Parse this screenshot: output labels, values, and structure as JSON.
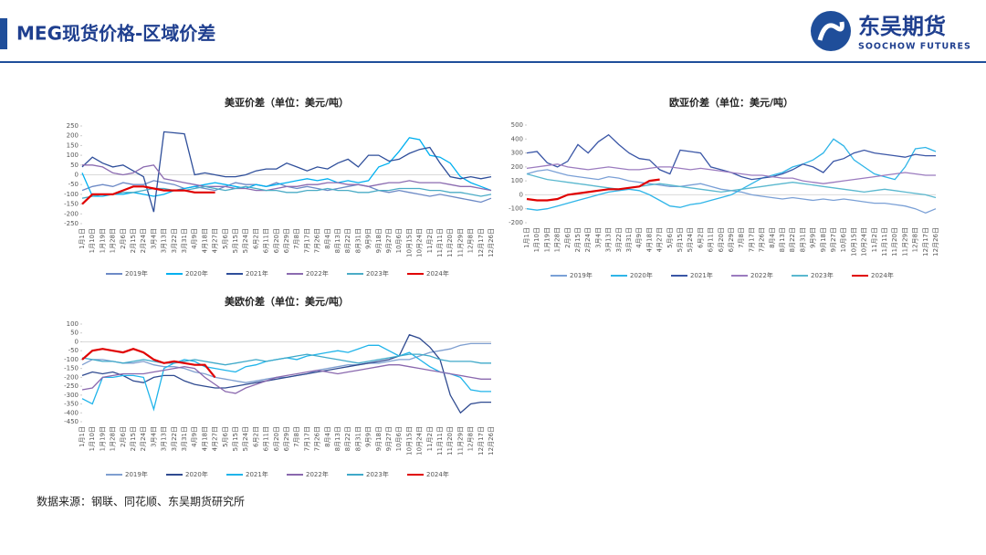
{
  "header": {
    "title": "MEG现货价格-区域价差",
    "logo_cn": "东吴期货",
    "logo_en": "SOOCHOW FUTURES"
  },
  "footer": {
    "source": "数据来源：钢联、同花顺、东吴期货研究所"
  },
  "chart_data": [
    {
      "type": "line",
      "title": "美亚价差（单位：美元/吨）",
      "ylim": [
        -250,
        250
      ],
      "yticks": [
        -250,
        -200,
        -150,
        -100,
        -50,
        0,
        50,
        100,
        150,
        200,
        250
      ],
      "categories": [
        "1月1日",
        "1月10日",
        "1月19日",
        "1月28日",
        "2月6日",
        "2月15日",
        "2月24日",
        "3月4日",
        "3月13日",
        "3月22日",
        "3月31日",
        "4月9日",
        "4月18日",
        "4月27日",
        "5月6日",
        "5月15日",
        "5月24日",
        "6月2日",
        "6月11日",
        "6月20日",
        "6月29日",
        "7月8日",
        "7月17日",
        "7月26日",
        "8月4日",
        "8月13日",
        "8月22日",
        "8月31日",
        "9月9日",
        "9月18日",
        "9月27日",
        "10月6日",
        "10月15日",
        "10月24日",
        "11月2日",
        "11月11日",
        "11月20日",
        "11月29日",
        "12月8日",
        "12月17日",
        "12月26日"
      ],
      "series": [
        {
          "name": "2019年",
          "color": "#6d8ac6",
          "values": [
            -80,
            -60,
            -50,
            -60,
            -40,
            -50,
            -50,
            -30,
            -40,
            -50,
            -70,
            -60,
            -70,
            -80,
            -60,
            -40,
            -50,
            -50,
            -60,
            -40,
            -60,
            -70,
            -60,
            -70,
            -80,
            -70,
            -60,
            -50,
            -60,
            -80,
            -90,
            -80,
            -90,
            -100,
            -110,
            -100,
            -110,
            -120,
            -130,
            -140,
            -120
          ]
        },
        {
          "name": "2020年",
          "color": "#00b0f0",
          "values": [
            10,
            -110,
            -110,
            -100,
            -100,
            -90,
            -100,
            -110,
            -100,
            -80,
            -70,
            -60,
            -50,
            -40,
            -50,
            -60,
            -70,
            -50,
            -60,
            -50,
            -40,
            -30,
            -20,
            -30,
            -20,
            -40,
            -30,
            -40,
            -30,
            40,
            60,
            120,
            190,
            180,
            100,
            90,
            60,
            -10,
            -40,
            -60,
            -80
          ]
        },
        {
          "name": "2021年",
          "color": "#2e4e9a",
          "values": [
            40,
            90,
            60,
            40,
            50,
            20,
            -10,
            -190,
            220,
            215,
            210,
            0,
            10,
            0,
            -10,
            -10,
            0,
            20,
            30,
            30,
            60,
            40,
            20,
            40,
            30,
            60,
            80,
            40,
            100,
            100,
            70,
            80,
            110,
            130,
            140,
            60,
            -10,
            -20,
            -10,
            -20,
            -10
          ]
        },
        {
          "name": "2022年",
          "color": "#8b6bb0",
          "values": [
            50,
            50,
            40,
            10,
            0,
            10,
            40,
            50,
            -20,
            -30,
            -40,
            -50,
            -60,
            -60,
            -60,
            -70,
            -70,
            -80,
            -80,
            -70,
            -60,
            -60,
            -50,
            -50,
            -40,
            -40,
            -50,
            -50,
            -60,
            -50,
            -40,
            -40,
            -30,
            -40,
            -40,
            -40,
            -50,
            -60,
            -60,
            -70,
            -80
          ]
        },
        {
          "name": "2023年",
          "color": "#4bacc6",
          "values": [
            -120,
            -110,
            -100,
            -100,
            -90,
            -90,
            -80,
            -70,
            -70,
            -80,
            -80,
            -70,
            -60,
            -70,
            -80,
            -70,
            -60,
            -70,
            -80,
            -80,
            -90,
            -90,
            -80,
            -80,
            -70,
            -80,
            -80,
            -90,
            -90,
            -80,
            -80,
            -70,
            -70,
            -70,
            -80,
            -80,
            -90,
            -90,
            -100,
            -110,
            -100
          ]
        },
        {
          "name": "2024年",
          "color": "#e00000",
          "values": [
            -150,
            -100,
            -100,
            -100,
            -80,
            -60,
            -60,
            -70,
            -80,
            -80,
            -80,
            -90,
            -90,
            -90,
            null,
            null,
            null,
            null,
            null,
            null,
            null,
            null,
            null,
            null,
            null,
            null,
            null,
            null,
            null,
            null,
            null,
            null,
            null,
            null,
            null,
            null,
            null,
            null,
            null,
            null,
            null
          ]
        }
      ]
    },
    {
      "type": "line",
      "title": "欧亚价差（单位：美元/吨）",
      "ylim": [
        -200,
        500
      ],
      "yticks": [
        -200,
        -100,
        0,
        100,
        200,
        300,
        400,
        500
      ],
      "categories": [
        "1月1日",
        "1月10日",
        "1月19日",
        "1月28日",
        "2月6日",
        "2月15日",
        "2月24日",
        "3月4日",
        "3月13日",
        "3月22日",
        "3月31日",
        "4月9日",
        "4月18日",
        "4月27日",
        "5月6日",
        "5月15日",
        "5月24日",
        "6月2日",
        "6月11日",
        "6月20日",
        "6月29日",
        "7月8日",
        "7月17日",
        "7月26日",
        "8月4日",
        "8月13日",
        "8月22日",
        "8月31日",
        "9月9日",
        "9月18日",
        "9月27日",
        "10月6日",
        "10月15日",
        "10月24日",
        "11月2日",
        "11月11日",
        "11月20日",
        "11月29日",
        "12月8日",
        "12月17日",
        "12月26日"
      ],
      "series": [
        {
          "name": "2019年",
          "color": "#7aa0d6",
          "values": [
            150,
            170,
            180,
            160,
            140,
            130,
            120,
            110,
            130,
            120,
            100,
            90,
            80,
            70,
            60,
            60,
            70,
            80,
            60,
            40,
            30,
            20,
            0,
            -10,
            -20,
            -30,
            -20,
            -30,
            -40,
            -30,
            -40,
            -30,
            -40,
            -50,
            -60,
            -60,
            -70,
            -80,
            -100,
            -130,
            -100
          ]
        },
        {
          "name": "2020年",
          "color": "#2fb5e8",
          "values": [
            -100,
            -110,
            -100,
            -80,
            -60,
            -40,
            -20,
            0,
            20,
            30,
            40,
            30,
            0,
            -40,
            -80,
            -90,
            -70,
            -60,
            -40,
            -20,
            0,
            40,
            80,
            120,
            140,
            160,
            200,
            220,
            250,
            300,
            400,
            350,
            250,
            200,
            150,
            130,
            110,
            200,
            330,
            340,
            310
          ]
        },
        {
          "name": "2021年",
          "color": "#3a56a6",
          "values": [
            300,
            310,
            230,
            200,
            240,
            360,
            300,
            380,
            430,
            360,
            300,
            260,
            250,
            180,
            150,
            320,
            310,
            300,
            200,
            180,
            160,
            130,
            110,
            120,
            130,
            150,
            180,
            220,
            200,
            160,
            240,
            260,
            300,
            320,
            300,
            290,
            280,
            270,
            290,
            280,
            280
          ]
        },
        {
          "name": "2022年",
          "color": "#9b7bbf",
          "values": [
            190,
            200,
            210,
            220,
            200,
            190,
            180,
            190,
            200,
            190,
            180,
            180,
            190,
            200,
            200,
            190,
            180,
            190,
            180,
            170,
            160,
            150,
            140,
            140,
            130,
            120,
            120,
            100,
            90,
            80,
            90,
            100,
            110,
            120,
            130,
            140,
            150,
            160,
            150,
            140,
            140
          ]
        },
        {
          "name": "2023年",
          "color": "#5ab8cf",
          "values": [
            150,
            130,
            110,
            100,
            90,
            80,
            70,
            60,
            50,
            40,
            50,
            60,
            70,
            80,
            70,
            60,
            50,
            40,
            30,
            20,
            30,
            40,
            50,
            60,
            70,
            80,
            90,
            80,
            70,
            60,
            50,
            40,
            30,
            20,
            30,
            40,
            30,
            20,
            10,
            0,
            -20
          ]
        },
        {
          "name": "2024年",
          "color": "#e00000",
          "values": [
            -30,
            -40,
            -40,
            -30,
            0,
            10,
            20,
            30,
            40,
            40,
            50,
            60,
            100,
            110,
            null,
            null,
            null,
            null,
            null,
            null,
            null,
            null,
            null,
            null,
            null,
            null,
            null,
            null,
            null,
            null,
            null,
            null,
            null,
            null,
            null,
            null,
            null,
            null,
            null,
            null,
            null
          ]
        }
      ]
    },
    {
      "type": "line",
      "title": "美欧价差（单位：美元/吨）",
      "ylim": [
        -450,
        100
      ],
      "yticks": [
        -450,
        -400,
        -350,
        -300,
        -250,
        -200,
        -150,
        -100,
        -50,
        0,
        50,
        100
      ],
      "categories": [
        "1月1日",
        "1月10日",
        "1月19日",
        "1月28日",
        "2月6日",
        "2月15日",
        "2月24日",
        "3月4日",
        "3月13日",
        "3月22日",
        "3月31日",
        "4月9日",
        "4月18日",
        "4月27日",
        "5月6日",
        "5月15日",
        "5月24日",
        "6月2日",
        "6月11日",
        "6月20日",
        "6月29日",
        "7月8日",
        "7月17日",
        "7月26日",
        "8月4日",
        "8月13日",
        "8月22日",
        "8月31日",
        "9月9日",
        "9月18日",
        "9月27日",
        "10月6日",
        "10月15日",
        "10月24日",
        "11月2日",
        "11月11日",
        "11月20日",
        "11月29日",
        "12月8日",
        "12月17日",
        "12月26日"
      ],
      "series": [
        {
          "name": "2019年",
          "color": "#7f9fd0",
          "values": [
            -130,
            -100,
            -100,
            -110,
            -120,
            -120,
            -110,
            -130,
            -140,
            -140,
            -150,
            -170,
            -180,
            -200,
            -210,
            -220,
            -230,
            -220,
            -210,
            -200,
            -200,
            -190,
            -180,
            -160,
            -150,
            -140,
            -130,
            -130,
            -120,
            -120,
            -110,
            -100,
            -100,
            -80,
            -60,
            -50,
            -40,
            -20,
            -10,
            -10,
            -10
          ]
        },
        {
          "name": "2020年",
          "color": "#2f4a90",
          "values": [
            -190,
            -170,
            -180,
            -170,
            -190,
            -220,
            -230,
            -200,
            -190,
            -190,
            -220,
            -240,
            -250,
            -260,
            -260,
            -250,
            -240,
            -230,
            -220,
            -210,
            -200,
            -190,
            -180,
            -170,
            -160,
            -150,
            -140,
            -130,
            -120,
            -110,
            -100,
            -80,
            40,
            20,
            -30,
            -100,
            -300,
            -400,
            -350,
            -340,
            -340
          ]
        },
        {
          "name": "2021年",
          "color": "#20b4ea",
          "values": [
            -320,
            -350,
            -200,
            -200,
            -190,
            -190,
            -200,
            -380,
            -150,
            -120,
            -100,
            -110,
            -140,
            -150,
            -160,
            -170,
            -140,
            -130,
            -110,
            -100,
            -90,
            -100,
            -80,
            -70,
            -60,
            -50,
            -60,
            -40,
            -20,
            -20,
            -50,
            -80,
            -60,
            -100,
            -140,
            -170,
            -180,
            -200,
            -270,
            -280,
            -280
          ]
        },
        {
          "name": "2022年",
          "color": "#8a68ae",
          "values": [
            -270,
            -260,
            -200,
            -190,
            -180,
            -180,
            -180,
            -170,
            -160,
            -150,
            -140,
            -150,
            -200,
            -240,
            -280,
            -290,
            -260,
            -240,
            -220,
            -200,
            -190,
            -180,
            -170,
            -160,
            -170,
            -180,
            -170,
            -160,
            -150,
            -140,
            -130,
            -130,
            -140,
            -150,
            -160,
            -170,
            -180,
            -190,
            -200,
            -210,
            -210
          ]
        },
        {
          "name": "2023年",
          "color": "#3fa9c9",
          "values": [
            -90,
            -100,
            -110,
            -110,
            -120,
            -110,
            -100,
            -110,
            -120,
            -120,
            -110,
            -100,
            -110,
            -120,
            -130,
            -120,
            -110,
            -100,
            -110,
            -100,
            -90,
            -80,
            -70,
            -80,
            -90,
            -100,
            -110,
            -120,
            -110,
            -100,
            -90,
            -80,
            -70,
            -70,
            -80,
            -100,
            -110,
            -110,
            -110,
            -120,
            -120
          ]
        },
        {
          "name": "2024年",
          "color": "#e00000",
          "values": [
            -100,
            -50,
            -40,
            -50,
            -60,
            -40,
            -60,
            -100,
            -120,
            -110,
            -120,
            -130,
            -130,
            -200,
            null,
            null,
            null,
            null,
            null,
            null,
            null,
            null,
            null,
            null,
            null,
            null,
            null,
            null,
            null,
            null,
            null,
            null,
            null,
            null,
            null,
            null,
            null,
            null,
            null,
            null,
            null
          ]
        }
      ]
    }
  ]
}
